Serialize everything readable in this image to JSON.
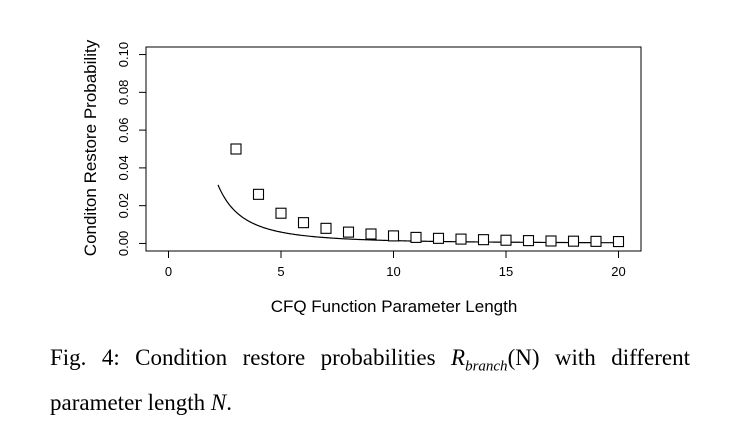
{
  "chart_data": {
    "type": "line",
    "xlabel": "CFQ Function Parameter Length",
    "ylabel": "Conditon Restore Probability",
    "xlim": [
      -1,
      21
    ],
    "ylim": [
      -0.004,
      0.104
    ],
    "xticks": [
      "0",
      "5",
      "10",
      "15",
      "20"
    ],
    "xtick_values": [
      0,
      5,
      10,
      15,
      20
    ],
    "yticks": [
      "0.00",
      "0.02",
      "0.04",
      "0.06",
      "0.08",
      "0.10"
    ],
    "ytick_values": [
      0,
      0.02,
      0.04,
      0.06,
      0.08,
      0.1
    ],
    "grid": false,
    "legend": "none",
    "marker": "open-square",
    "curve": "y = 0.15 / N^2 (solid line, starts near N = 2.2)",
    "series": [
      {
        "x": [
          3,
          4,
          5,
          6,
          7,
          8,
          9,
          10,
          11,
          12,
          13,
          14,
          15,
          16,
          17,
          18,
          19,
          20
        ],
        "values": [
          0.05,
          0.026,
          0.016,
          0.011,
          0.008,
          0.006,
          0.005,
          0.004,
          0.0032,
          0.0027,
          0.0023,
          0.002,
          0.0017,
          0.0015,
          0.0013,
          0.0012,
          0.0011,
          0.001
        ]
      }
    ]
  },
  "caption": {
    "label": "Fig. 4:",
    "text_before": "Condition restore probabilities",
    "math_symbol": "R",
    "math_subscript": "branch",
    "math_arg": "(N)",
    "text_middle": "with different parameter length",
    "math_n": "N",
    "text_end": "."
  }
}
